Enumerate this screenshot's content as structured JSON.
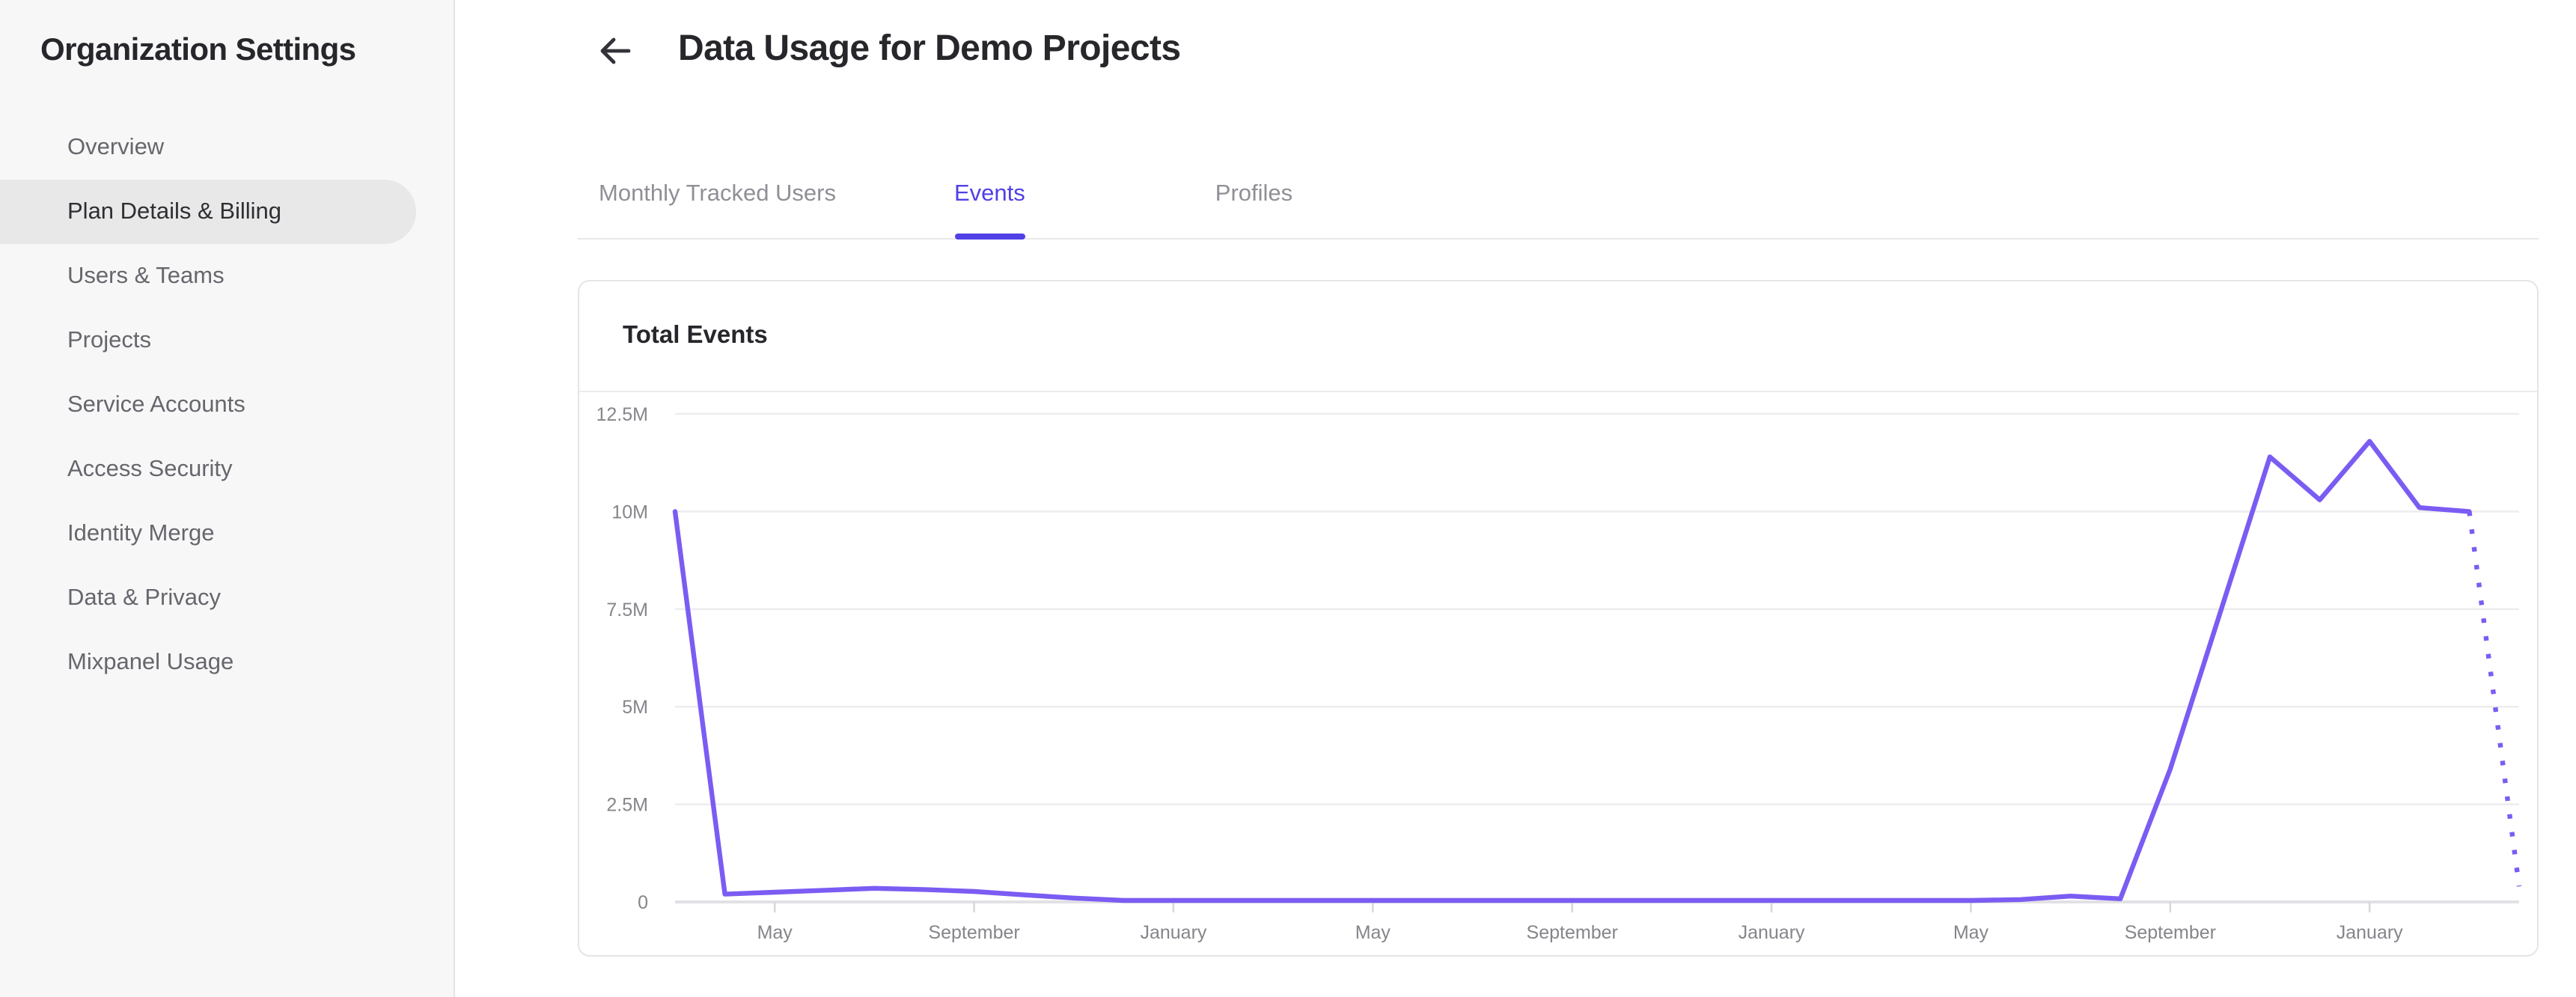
{
  "sidebar": {
    "title": "Organization Settings",
    "items": [
      {
        "label": "Overview",
        "active": false
      },
      {
        "label": "Plan Details & Billing",
        "active": true
      },
      {
        "label": "Users & Teams",
        "active": false
      },
      {
        "label": "Projects",
        "active": false
      },
      {
        "label": "Service Accounts",
        "active": false
      },
      {
        "label": "Access Security",
        "active": false
      },
      {
        "label": "Identity Merge",
        "active": false
      },
      {
        "label": "Data & Privacy",
        "active": false
      },
      {
        "label": "Mixpanel Usage",
        "active": false
      }
    ]
  },
  "page": {
    "title": "Data Usage for Demo Projects"
  },
  "tabs": [
    {
      "label": "Monthly Tracked Users",
      "active": false
    },
    {
      "label": "Events",
      "active": true
    },
    {
      "label": "Profiles",
      "active": false
    }
  ],
  "usage_card": {
    "title": "Total Events"
  },
  "colors": {
    "accent": "#5040e6",
    "line": "#7b5cf3",
    "grid": "#ededf0",
    "baseline": "#e2e2e5",
    "tick": "#d9d9dc",
    "axis_text": "#85858b"
  },
  "chart_data": {
    "type": "line",
    "title": "Total Events",
    "series_name": "Total Events",
    "series_color": "#7b5cf3",
    "grid": "horizontal",
    "legend": "none",
    "ylim": [
      0,
      12500000
    ],
    "y_tick_labels": [
      "0",
      "2.5M",
      "5M",
      "7.5M",
      "10M",
      "12.5M"
    ],
    "x_ticks": [
      {
        "index": 2,
        "label": "May"
      },
      {
        "index": 6,
        "label": "September"
      },
      {
        "index": 10,
        "label": "January"
      },
      {
        "index": 14,
        "label": "May"
      },
      {
        "index": 18,
        "label": "September"
      },
      {
        "index": 22,
        "label": "January"
      },
      {
        "index": 26,
        "label": "May"
      },
      {
        "index": 30,
        "label": "September"
      },
      {
        "index": 34,
        "label": "January"
      }
    ],
    "values": [
      10000000,
      200000,
      250000,
      300000,
      350000,
      320000,
      270000,
      180000,
      100000,
      40000,
      40000,
      40000,
      40000,
      40000,
      40000,
      40000,
      40000,
      40000,
      40000,
      40000,
      40000,
      40000,
      40000,
      40000,
      40000,
      40000,
      40000,
      60000,
      150000,
      80000,
      3400000,
      7400000,
      11400000,
      10300000,
      11800000,
      10100000,
      10000000,
      400000
    ],
    "dashed_from_index": 36,
    "note_dashed_segment": "final month shown as dotted projection"
  }
}
